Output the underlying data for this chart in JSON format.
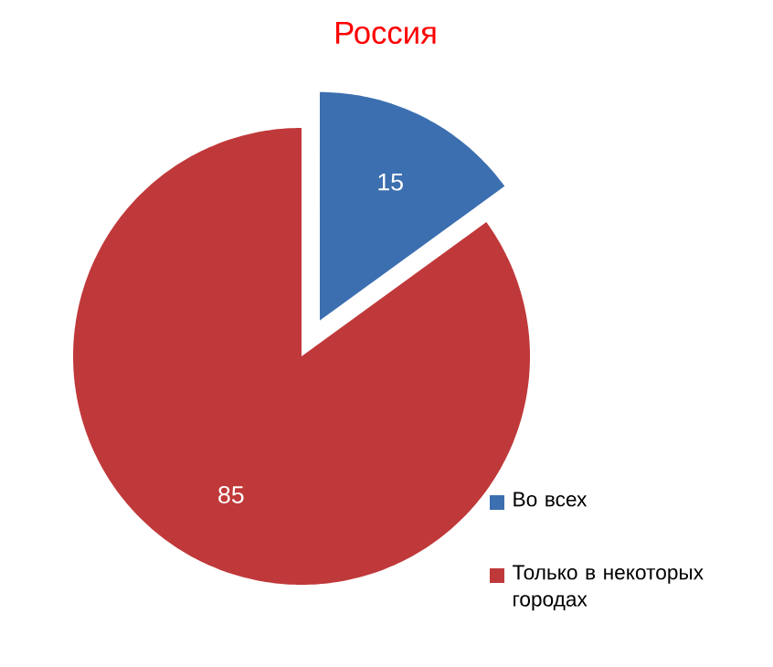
{
  "chart_data": {
    "type": "pie",
    "title": "Россия",
    "categories": [
      "Во всех",
      "Только в некоторых городах"
    ],
    "values": [
      15,
      85
    ],
    "colors": [
      "#3c6fb0",
      "#c0393a"
    ],
    "data_labels": true,
    "legend": "bottom right"
  }
}
